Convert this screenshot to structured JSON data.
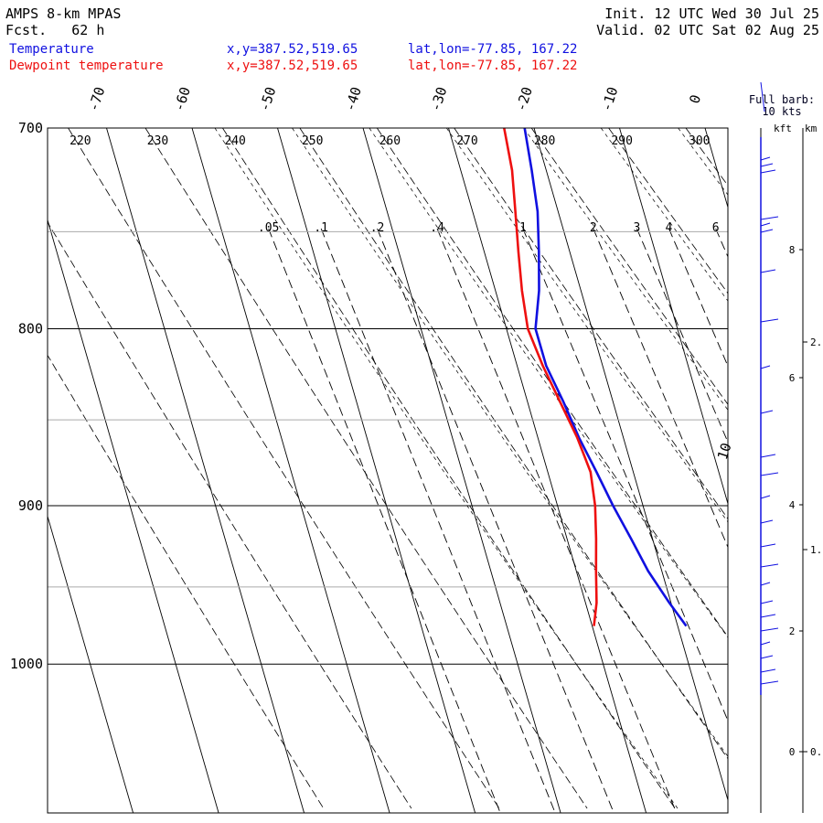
{
  "header": {
    "model": "AMPS 8-km MPAS",
    "fcst_label": "Fcst.",
    "fcst_value": "62 h",
    "init": "Init. 12 UTC Wed 30 Jul 25",
    "valid": "Valid. 02 UTC Sat 02 Aug 25"
  },
  "legend": [
    {
      "name": "Temperature",
      "color": "#1010e0",
      "xy": "x,y=387.52,519.65",
      "latlon": "lat,lon=-77.85, 167.22"
    },
    {
      "name": "Dewpoint temperature",
      "color": "#ee1010",
      "xy": "x,y=387.52,519.65",
      "latlon": "lat,lon=-77.85, 167.22"
    }
  ],
  "wind_panel": {
    "title_line1": "Full barb:",
    "title_line2": "10 kts",
    "kft_label": "kft",
    "km_label": "km",
    "kft_ticks": [
      "8",
      "6",
      "4",
      "2",
      "0"
    ],
    "km_ticks": [
      "2.",
      "1.",
      "0."
    ]
  },
  "chart_data": {
    "type": "line",
    "chart_kind": "skew-T log-P diagram",
    "pressure_axis": {
      "labels": [
        "700",
        "800",
        "900",
        "1000"
      ],
      "values": [
        700,
        800,
        900,
        1000
      ],
      "range": [
        1050,
        700
      ],
      "scale": "log"
    },
    "temperature_ticks": {
      "labels": [
        "-70",
        "-60",
        "-50",
        "-40",
        "-30",
        "-20",
        "-10",
        "0",
        "10"
      ],
      "values": [
        -70,
        -60,
        -50,
        -40,
        -30,
        -20,
        -10,
        0,
        10
      ]
    },
    "theta_labels": [
      "220",
      "230",
      "240",
      "250",
      "260",
      "270",
      "280",
      "290",
      "300"
    ],
    "mixing_ratio_labels": [
      ".05",
      ".1",
      ".2",
      ".4",
      "1",
      "2",
      "3",
      "4",
      "6"
    ],
    "mixing_ratio_values": [
      0.05,
      0.1,
      0.2,
      0.4,
      1,
      2,
      3,
      4,
      6
    ],
    "series": [
      {
        "name": "Temperature",
        "color": "#1010e0",
        "points": [
          [
            700,
            -21.1
          ],
          [
            720,
            -21.7
          ],
          [
            740,
            -22.4
          ],
          [
            760,
            -23.6
          ],
          [
            780,
            -24.9
          ],
          [
            800,
            -26.6
          ],
          [
            820,
            -26.6
          ],
          [
            840,
            -25.8
          ],
          [
            860,
            -25.2
          ],
          [
            880,
            -24.3
          ],
          [
            900,
            -23.5
          ],
          [
            920,
            -22.5
          ],
          [
            940,
            -21.6
          ],
          [
            960,
            -20.2
          ],
          [
            975,
            -19.0
          ]
        ]
      },
      {
        "name": "Dewpoint temperature",
        "color": "#ee1010",
        "points": [
          [
            700,
            -23.5
          ],
          [
            720,
            -24.0
          ],
          [
            740,
            -25.0
          ],
          [
            760,
            -26.0
          ],
          [
            780,
            -26.9
          ],
          [
            800,
            -27.5
          ],
          [
            820,
            -27.0
          ],
          [
            840,
            -26.2
          ],
          [
            860,
            -25.4
          ],
          [
            880,
            -25.0
          ],
          [
            900,
            -25.6
          ],
          [
            920,
            -26.6
          ],
          [
            940,
            -27.7
          ],
          [
            960,
            -28.7
          ],
          [
            975,
            -29.8
          ]
        ]
      }
    ],
    "grid": true
  }
}
